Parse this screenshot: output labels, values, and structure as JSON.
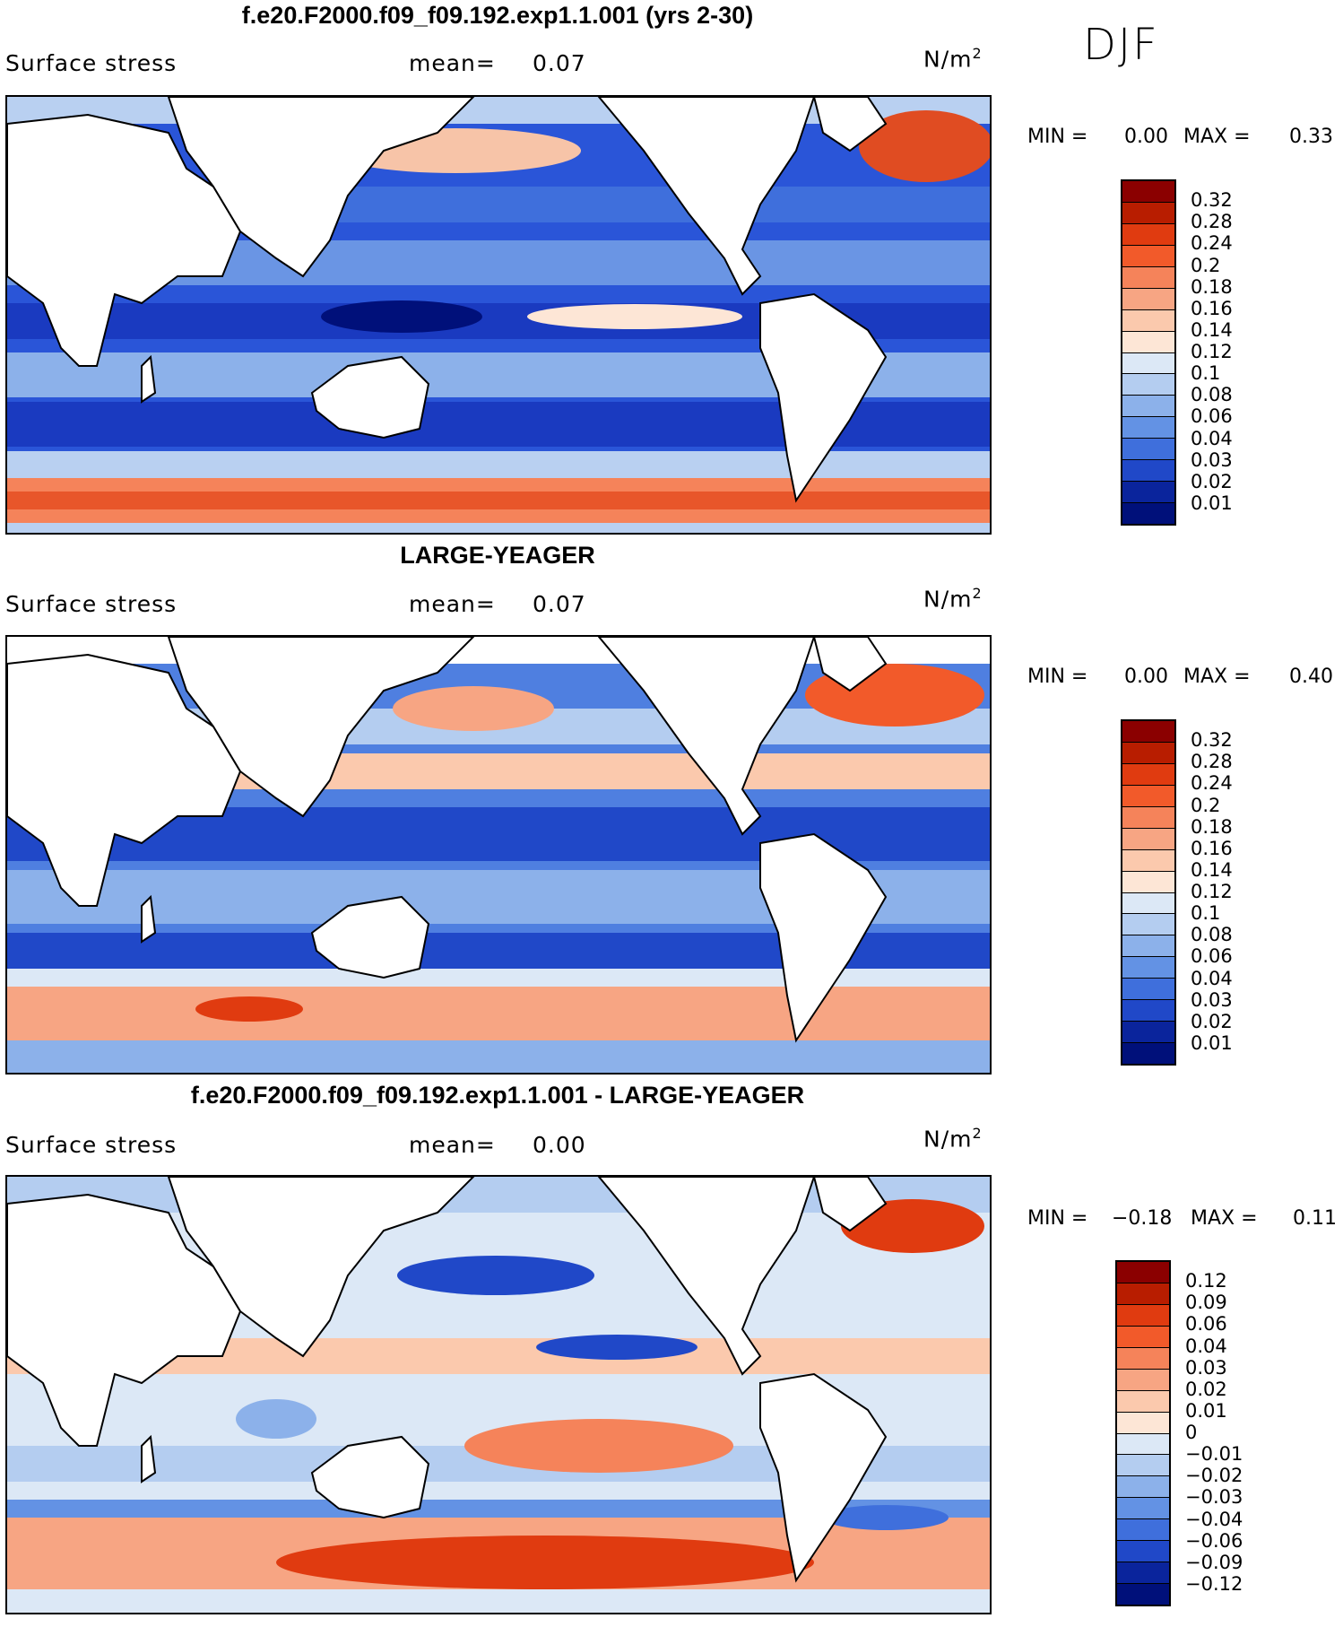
{
  "season": "DJF",
  "panels": [
    {
      "title": "f.e20.F2000.f09_f09.192.exp1.1.001 (yrs 2-30)",
      "variable": "Surface stress",
      "mean_label": "mean=",
      "mean_value": "0.07",
      "units_base": "N/m",
      "units_exp": "2",
      "min_label": "MIN =",
      "min_value": "0.00",
      "max_label": "MAX =",
      "max_value": "0.33",
      "colorbar": {
        "labels": [
          "0.32",
          "0.28",
          "0.24",
          "0.2",
          "0.18",
          "0.16",
          "0.14",
          "0.12",
          "0.1",
          "0.08",
          "0.06",
          "0.04",
          "0.03",
          "0.02",
          "0.01"
        ],
        "colors": [
          "#8b0000",
          "#b81d00",
          "#e03b10",
          "#f25a2a",
          "#f5835a",
          "#f7a583",
          "#fbc9ad",
          "#fde6d6",
          "#dce8f6",
          "#b4cdf0",
          "#8cb1ea",
          "#6392e4",
          "#3f6fdc",
          "#2048c8",
          "#0a249c",
          "#00107a"
        ]
      }
    },
    {
      "title": "LARGE-YEAGER",
      "variable": "Surface stress",
      "mean_label": "mean=",
      "mean_value": "0.07",
      "units_base": "N/m",
      "units_exp": "2",
      "min_label": "MIN =",
      "min_value": "0.00",
      "max_label": "MAX =",
      "max_value": "0.40",
      "colorbar": {
        "labels": [
          "0.32",
          "0.28",
          "0.24",
          "0.2",
          "0.18",
          "0.16",
          "0.14",
          "0.12",
          "0.1",
          "0.08",
          "0.06",
          "0.04",
          "0.03",
          "0.02",
          "0.01"
        ],
        "colors": [
          "#8b0000",
          "#b81d00",
          "#e03b10",
          "#f25a2a",
          "#f5835a",
          "#f7a583",
          "#fbc9ad",
          "#fde6d6",
          "#dce8f6",
          "#b4cdf0",
          "#8cb1ea",
          "#6392e4",
          "#3f6fdc",
          "#2048c8",
          "#0a249c",
          "#00107a"
        ]
      }
    },
    {
      "title": "f.e20.F2000.f09_f09.192.exp1.1.001 - LARGE-YEAGER",
      "variable": "Surface stress",
      "mean_label": "mean=",
      "mean_value": "0.00",
      "units_base": "N/m",
      "units_exp": "2",
      "min_label": "MIN =",
      "min_value": "−0.18",
      "max_label": "MAX =",
      "max_value": "0.11",
      "colorbar": {
        "labels": [
          "0.12",
          "0.09",
          "0.06",
          "0.04",
          "0.03",
          "0.02",
          "0.01",
          "0",
          "−0.01",
          "−0.02",
          "−0.03",
          "−0.04",
          "−0.06",
          "−0.09",
          "−0.12"
        ],
        "colors": [
          "#8b0000",
          "#b81d00",
          "#e03b10",
          "#f25a2a",
          "#f5835a",
          "#f7a583",
          "#fbc9ad",
          "#fde6d6",
          "#dce8f6",
          "#b4cdf0",
          "#8cb1ea",
          "#6392e4",
          "#3f6fdc",
          "#2048c8",
          "#0a249c",
          "#00107a"
        ]
      }
    }
  ]
}
